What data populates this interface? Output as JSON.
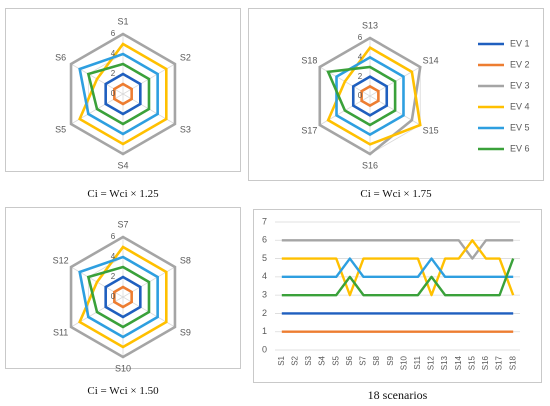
{
  "colors": {
    "EV 1": "#1f5fbf",
    "EV 2": "#ed7d31",
    "EV 3": "#a5a5a5",
    "EV 4": "#ffc000",
    "EV 5": "#2e9fe0",
    "EV 6": "#3aa13a"
  },
  "chart_data": [
    {
      "type": "radar",
      "axes": [
        "S1",
        "S2",
        "S3",
        "S4",
        "S5",
        "S6"
      ],
      "rlim": [
        0,
        6
      ],
      "rticks": [
        "0",
        "2",
        "4",
        "6"
      ],
      "series": [
        {
          "name": "EV 1",
          "values": [
            2,
            2,
            2,
            2,
            2,
            2
          ]
        },
        {
          "name": "EV 2",
          "values": [
            1,
            1,
            1,
            1,
            1,
            1
          ]
        },
        {
          "name": "EV 3",
          "values": [
            6,
            6,
            6,
            6,
            6,
            6
          ]
        },
        {
          "name": "EV 4",
          "values": [
            5,
            5,
            5,
            5,
            5,
            3
          ]
        },
        {
          "name": "EV 5",
          "values": [
            4,
            4,
            4,
            4,
            4,
            5
          ]
        },
        {
          "name": "EV 6",
          "values": [
            3,
            3,
            3,
            3,
            3,
            4
          ]
        }
      ]
    },
    {
      "type": "radar",
      "axes": [
        "S13",
        "S14",
        "S15",
        "S16",
        "S17",
        "S18"
      ],
      "rlim": [
        0,
        6
      ],
      "rticks": [
        "0",
        "2",
        "4",
        "6"
      ],
      "series": [
        {
          "name": "EV 1",
          "values": [
            2,
            2,
            2,
            2,
            2,
            2
          ]
        },
        {
          "name": "EV 2",
          "values": [
            1,
            1,
            1,
            1,
            1,
            1
          ]
        },
        {
          "name": "EV 3",
          "values": [
            6,
            6,
            5,
            6,
            6,
            6
          ]
        },
        {
          "name": "EV 4",
          "values": [
            5,
            5,
            6,
            5,
            5,
            3
          ]
        },
        {
          "name": "EV 5",
          "values": [
            4,
            4,
            4,
            4,
            4,
            4
          ]
        },
        {
          "name": "EV 6",
          "values": [
            3,
            3,
            3,
            3,
            3,
            5
          ]
        }
      ]
    },
    {
      "type": "radar",
      "axes": [
        "S7",
        "S8",
        "S9",
        "S10",
        "S11",
        "S12"
      ],
      "rlim": [
        0,
        6
      ],
      "rticks": [
        "0",
        "2",
        "4",
        "6"
      ],
      "series": [
        {
          "name": "EV 1",
          "values": [
            2,
            2,
            2,
            2,
            2,
            2
          ]
        },
        {
          "name": "EV 2",
          "values": [
            1,
            1,
            1,
            1,
            1,
            1
          ]
        },
        {
          "name": "EV 3",
          "values": [
            6,
            6,
            6,
            6,
            6,
            6
          ]
        },
        {
          "name": "EV 4",
          "values": [
            5,
            5,
            5,
            5,
            5,
            3
          ]
        },
        {
          "name": "EV 5",
          "values": [
            4,
            4,
            4,
            4,
            4,
            5
          ]
        },
        {
          "name": "EV 6",
          "values": [
            3,
            3,
            3,
            3,
            3,
            4
          ]
        }
      ]
    },
    {
      "type": "line",
      "x": [
        "S1",
        "S2",
        "S3",
        "S4",
        "S5",
        "S6",
        "S7",
        "S8",
        "S9",
        "S10",
        "S11",
        "S12",
        "S13",
        "S14",
        "S15",
        "S16",
        "S17",
        "S18"
      ],
      "ylim": [
        0,
        7
      ],
      "yticks": [
        0,
        1,
        2,
        3,
        4,
        5,
        6,
        7
      ],
      "series": [
        {
          "name": "EV 1",
          "values": [
            2,
            2,
            2,
            2,
            2,
            2,
            2,
            2,
            2,
            2,
            2,
            2,
            2,
            2,
            2,
            2,
            2,
            2
          ]
        },
        {
          "name": "EV 2",
          "values": [
            1,
            1,
            1,
            1,
            1,
            1,
            1,
            1,
            1,
            1,
            1,
            1,
            1,
            1,
            1,
            1,
            1,
            1
          ]
        },
        {
          "name": "EV 3",
          "values": [
            6,
            6,
            6,
            6,
            6,
            6,
            6,
            6,
            6,
            6,
            6,
            6,
            6,
            6,
            5,
            6,
            6,
            6
          ]
        },
        {
          "name": "EV 4",
          "values": [
            5,
            5,
            5,
            5,
            5,
            3,
            5,
            5,
            5,
            5,
            5,
            3,
            5,
            5,
            6,
            5,
            5,
            3
          ]
        },
        {
          "name": "EV 5",
          "values": [
            4,
            4,
            4,
            4,
            4,
            5,
            4,
            4,
            4,
            4,
            4,
            5,
            4,
            4,
            4,
            4,
            4,
            4
          ]
        },
        {
          "name": "EV 6",
          "values": [
            3,
            3,
            3,
            3,
            3,
            4,
            3,
            3,
            3,
            3,
            3,
            4,
            3,
            3,
            3,
            3,
            3,
            5
          ]
        }
      ]
    }
  ],
  "legend": [
    "EV 1",
    "EV 2",
    "EV 3",
    "EV 4",
    "EV 5",
    "EV 6"
  ],
  "captions": {
    "radar1": "Ci = Wci × 1.25",
    "radar2": "Ci = Wci × 1.75",
    "radar3": "Ci = Wci × 1.50",
    "line": "18 scenarios"
  }
}
